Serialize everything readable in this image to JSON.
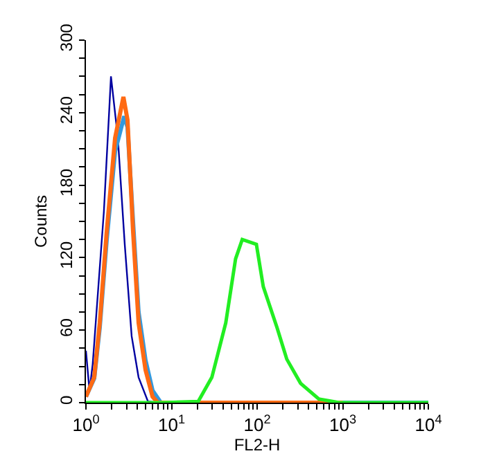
{
  "chart_data": {
    "type": "line",
    "xlabel": "FL2-H",
    "ylabel": "Counts",
    "log": "x",
    "marker": "none",
    "line_style": "solid",
    "xlim": [
      1,
      10000
    ],
    "ylim": [
      0,
      300
    ],
    "xticks": [
      {
        "value": 1,
        "label": "10$^{0}$"
      },
      {
        "value": 2,
        "label": null
      },
      {
        "value": 3,
        "label": null
      },
      {
        "value": 4,
        "label": null
      },
      {
        "value": 5,
        "label": null
      },
      {
        "value": 6,
        "label": null
      },
      {
        "value": 7,
        "label": null
      },
      {
        "value": 8,
        "label": null
      },
      {
        "value": 9,
        "label": null
      },
      {
        "value": 10,
        "label": "10$^{1}$"
      },
      {
        "value": 20,
        "label": null
      },
      {
        "value": 30,
        "label": null
      },
      {
        "value": 40,
        "label": null
      },
      {
        "value": 50,
        "label": null
      },
      {
        "value": 60,
        "label": null
      },
      {
        "value": 70,
        "label": null
      },
      {
        "value": 80,
        "label": null
      },
      {
        "value": 90,
        "label": null
      },
      {
        "value": 100,
        "label": "10$^{2}$"
      },
      {
        "value": 200,
        "label": null
      },
      {
        "value": 300,
        "label": null
      },
      {
        "value": 400,
        "label": null
      },
      {
        "value": 500,
        "label": null
      },
      {
        "value": 600,
        "label": null
      },
      {
        "value": 700,
        "label": null
      },
      {
        "value": 800,
        "label": null
      },
      {
        "value": 900,
        "label": null
      },
      {
        "value": 1000,
        "label": "10$^{3}$"
      },
      {
        "value": 2000,
        "label": null
      },
      {
        "value": 3000,
        "label": null
      },
      {
        "value": 4000,
        "label": null
      },
      {
        "value": 5000,
        "label": null
      },
      {
        "value": 6000,
        "label": null
      },
      {
        "value": 7000,
        "label": null
      },
      {
        "value": 8000,
        "label": null
      },
      {
        "value": 9000,
        "label": null
      },
      {
        "value": 10000,
        "label": "10$^{4}$"
      }
    ],
    "yticks": [
      0,
      {
        "value": 15,
        "label": null
      },
      {
        "value": 30,
        "label": null
      },
      {
        "value": 45,
        "label": null
      },
      60,
      {
        "value": 75,
        "label": null
      },
      {
        "value": 90,
        "label": null
      },
      {
        "value": 105,
        "label": null
      },
      120,
      {
        "value": 135,
        "label": null
      },
      {
        "value": 150,
        "label": null
      },
      {
        "value": 165,
        "label": null
      },
      180,
      {
        "value": 195,
        "label": null
      },
      {
        "value": 210,
        "label": null
      },
      {
        "value": 225,
        "label": null
      },
      240,
      {
        "value": 255,
        "label": null
      },
      {
        "value": 270,
        "label": null
      },
      {
        "value": 285,
        "label": null
      },
      300
    ],
    "series": [
      {
        "color": "#0000a0",
        "x": [
          1.0,
          1.1,
          1.2,
          1.3,
          1.62,
          1.88,
          1.96,
          2.36,
          2.84,
          3.42,
          4.12,
          5.3,
          7,
          10000
        ],
        "values": [
          43,
          10,
          32,
          66,
          158,
          245,
          270,
          219,
          131,
          55,
          21,
          1,
          0,
          0
        ]
      },
      {
        "color": "#3399dd",
        "x": [
          1.0,
          1.25,
          1.45,
          1.75,
          2.19,
          2.8,
          3.06,
          3.55,
          4.12,
          4.97,
          6.0,
          7.5,
          10000
        ],
        "values": [
          5,
          20,
          62,
          135,
          208,
          237,
          228,
          150,
          75,
          35,
          10,
          0,
          0
        ]
      },
      {
        "color": "#ff6a13",
        "x": [
          1.0,
          1.25,
          1.45,
          1.75,
          2.19,
          2.74,
          3.06,
          3.55,
          4.12,
          4.97,
          6.0,
          6.9,
          1000
        ],
        "values": [
          5,
          21,
          66,
          142,
          219,
          253,
          234,
          142,
          66,
          27,
          5,
          0,
          0
        ]
      },
      {
        "color": "#22ee22",
        "x": [
          1.0,
          8,
          20.5,
          29.6,
          43,
          56,
          67,
          98,
          118,
          171,
          222,
          322,
          525,
          916,
          10000
        ],
        "values": [
          0,
          0,
          1,
          21,
          66,
          119,
          135,
          131,
          96,
          62,
          36,
          16,
          3,
          0,
          0
        ]
      }
    ]
  }
}
